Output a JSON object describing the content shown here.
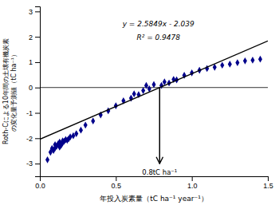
{
  "chart_data": {
    "type": "scatter",
    "x_label": "年投入炭素量（tC ha⁻¹ year⁻¹）",
    "y_label": [
      "Roth-Cによる10年間の土壌有機炭素",
      "の変化量予測値（tC ha⁻¹）"
    ],
    "xlim": [
      0,
      1.5
    ],
    "ylim": [
      -3.5,
      3.2
    ],
    "xticks": [
      {
        "value": 0,
        "label": "0.0"
      },
      0.5,
      {
        "value": 1.0,
        "label": "1.0"
      },
      1.5
    ],
    "yticks": [
      -3,
      -2,
      -1,
      0,
      1,
      2,
      3
    ],
    "grid": false,
    "series": [
      {
        "type": "scatter",
        "color": "#00008B",
        "marker": "diamond",
        "x": [
          0.05,
          0.07,
          0.08,
          0.09,
          0.1,
          0.1,
          0.11,
          0.12,
          0.13,
          0.13,
          0.14,
          0.15,
          0.15,
          0.16,
          0.17,
          0.18,
          0.19,
          0.2,
          0.22,
          0.24,
          0.27,
          0.3,
          0.35,
          0.4,
          0.45,
          0.5,
          0.55,
          0.6,
          0.62,
          0.65,
          0.68,
          0.7,
          0.72,
          0.75,
          0.8,
          0.82,
          0.85,
          0.88,
          0.9,
          0.95,
          1.0,
          1.05,
          1.1,
          1.15,
          1.2,
          1.25,
          1.3,
          1.35,
          1.4,
          1.45
        ],
        "values": [
          -2.85,
          -2.55,
          -2.4,
          -2.48,
          -2.25,
          -2.38,
          -2.32,
          -2.22,
          -2.35,
          -2.15,
          -2.28,
          -2.18,
          -2.1,
          -2.12,
          -2.05,
          -2.08,
          -2.02,
          -1.95,
          -1.9,
          -1.82,
          -1.68,
          -1.48,
          -1.32,
          -1.08,
          -0.92,
          -0.72,
          -0.52,
          -0.42,
          -0.25,
          -0.28,
          -0.12,
          0.08,
          -0.05,
          0.12,
          0.08,
          0.22,
          0.18,
          0.32,
          0.3,
          0.48,
          0.58,
          0.68,
          0.75,
          0.8,
          0.88,
          0.92,
          0.98,
          1.05,
          1.08,
          1.12
        ]
      },
      {
        "type": "line",
        "color": "#000000",
        "line_style": "solid",
        "x": [
          0,
          1.5
        ],
        "values": [
          -2.039,
          1.83835
        ]
      }
    ],
    "hline": 0,
    "annotations": [
      {
        "text": "y = 2.5849x - 2.039",
        "x": 0.78,
        "y": 2.5
      },
      {
        "text": "R² = 0.9478",
        "x": 0.78,
        "y": 1.95
      },
      {
        "text": "0.8tC ha⁻¹",
        "x": 0.7881,
        "y": -3.25,
        "arrow": {
          "x": 0.7881,
          "y_from": 0.0,
          "y_to": -3.0
        }
      }
    ]
  }
}
